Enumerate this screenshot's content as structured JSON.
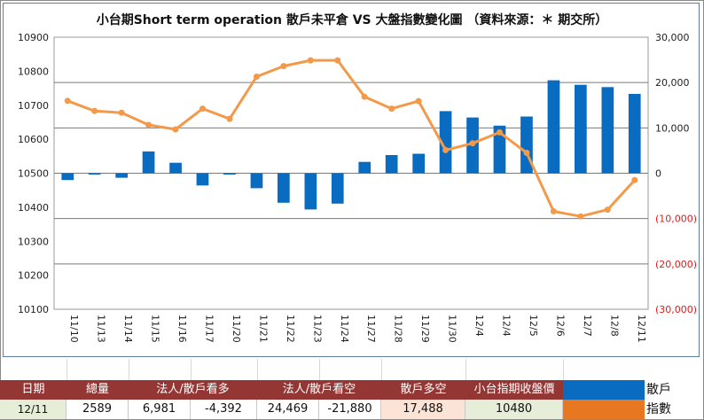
{
  "title": "小台期Short term operation 散戶未平倉 VS 大盤指數變化圖 （資料來源：＊ 期交所）",
  "chart_data": {
    "type": "bar+line",
    "categories": [
      "11/10",
      "11/13",
      "11/14",
      "11/15",
      "11/16",
      "11/17",
      "11/20",
      "11/21",
      "11/22",
      "11/23",
      "11/24",
      "11/27",
      "11/28",
      "11/29",
      "11/30",
      "12/4",
      "12/4",
      "12/5",
      "12/6",
      "12/7",
      "12/8",
      "12/11"
    ],
    "left_axis": {
      "min": 10100,
      "max": 10900,
      "ticks": [
        "10900",
        "10800",
        "10700",
        "10600",
        "10500",
        "10400",
        "10300",
        "10200",
        "10100"
      ]
    },
    "right_axis": {
      "min": -30000,
      "max": 30000,
      "ticks": [
        "30,000",
        "20,000",
        "10,000",
        "0",
        "(10,000)",
        "(20,000)",
        "(30,000)"
      ]
    },
    "series": [
      {
        "name": "散戶",
        "axis": "right",
        "kind": "bar",
        "color": "#0a6cc0",
        "values": [
          -1500,
          -300,
          -1000,
          4800,
          2300,
          -2700,
          -300,
          -3300,
          -6500,
          -8000,
          -6700,
          2500,
          4000,
          4300,
          13700,
          12300,
          10500,
          12500,
          20500,
          19500,
          19000,
          17500
        ]
      },
      {
        "name": "指數",
        "axis": "left",
        "kind": "line",
        "color": "#f39a4a",
        "values": [
          10713,
          10683,
          10678,
          10642,
          10629,
          10690,
          10660,
          10784,
          10815,
          10832,
          10832,
          10725,
          10690,
          10712,
          10568,
          10588,
          10620,
          10560,
          10388,
          10373,
          10393,
          10480
        ]
      }
    ]
  },
  "table": {
    "headers": [
      "日期",
      "總量",
      "法人/散戶看多",
      "法人/散戶看空",
      "散戶多空",
      "小台指期收盤價"
    ],
    "row": {
      "date": "12/11",
      "total": "2589",
      "inst_long": "6,981",
      "retail_long": "-4,392",
      "inst_short": "24,469",
      "retail_short": "-21,880",
      "retail_net": "17,488",
      "close": "10480"
    },
    "legend": [
      {
        "label": "散戶",
        "color": "#0a6cc0"
      },
      {
        "label": "指數",
        "color": "#e87722"
      }
    ]
  }
}
